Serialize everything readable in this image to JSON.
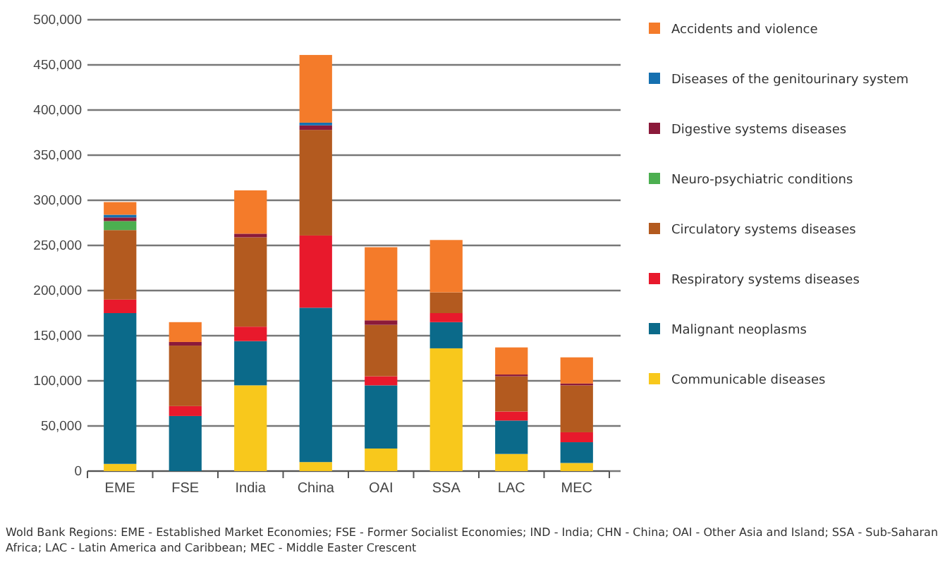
{
  "chart_data": {
    "type": "bar",
    "stacked": true,
    "categories": [
      "EME",
      "FSE",
      "India",
      "China",
      "OAI",
      "SSA",
      "LAC",
      "MEC"
    ],
    "series": [
      {
        "name": "Communicable diseases",
        "color": "#f8c81c",
        "values": [
          8000,
          0,
          95000,
          10000,
          25000,
          136000,
          19000,
          9000
        ]
      },
      {
        "name": "Malignant neoplasms",
        "color": "#0b6a8a",
        "values": [
          167000,
          61000,
          49000,
          171000,
          70000,
          29000,
          37000,
          23000
        ]
      },
      {
        "name": "Respiratory systems diseases",
        "color": "#e8192c",
        "values": [
          15000,
          11000,
          16000,
          80000,
          10000,
          10000,
          10000,
          11000
        ]
      },
      {
        "name": "Circulatory systems diseases",
        "color": "#b35a1f",
        "values": [
          77000,
          67000,
          99000,
          117000,
          57000,
          23000,
          39000,
          52000
        ]
      },
      {
        "name": "Neuro-psychiatric conditions",
        "color": "#4caf50",
        "values": [
          10000,
          0,
          0,
          0,
          0,
          0,
          0,
          0
        ]
      },
      {
        "name": "Digestive systems diseases",
        "color": "#8b1a3a",
        "values": [
          4000,
          4000,
          4000,
          5000,
          5000,
          0,
          2000,
          2000
        ]
      },
      {
        "name": "Diseases of the genitourinary system",
        "color": "#1570b0",
        "values": [
          3000,
          0,
          0,
          3000,
          0,
          0,
          0,
          0
        ]
      },
      {
        "name": "Accidents and violence",
        "color": "#f47b2a",
        "values": [
          14000,
          22000,
          48000,
          75000,
          81000,
          58000,
          30000,
          29000
        ]
      }
    ],
    "ylim": [
      0,
      500000
    ],
    "yticks": [
      0,
      {
        "value": 50000,
        "label": "50,000"
      },
      {
        "value": 100000,
        "label": "100,000"
      },
      {
        "value": 150000,
        "label": "150,000"
      },
      {
        "value": 200000,
        "label": "200,000"
      },
      {
        "value": 250000,
        "label": "250,000"
      },
      {
        "value": 300000,
        "label": "300,000"
      },
      {
        "value": 350000,
        "label": "350,000"
      },
      {
        "value": 400000,
        "label": "400,000"
      },
      {
        "value": 450000,
        "label": "450,000"
      },
      {
        "value": 500000,
        "label": "500,000"
      }
    ],
    "grid": "y",
    "legend": "right",
    "annotations": [
      "Wold Bank Regions: EME - Established Market Economies; FSE - Former Socialist Economies; IND - India; CHN - China; OAI - Other Asia and Island; SSA - Sub-Saharan Africa; LAC - Latin America and Caribbean; MEC - Middle Easter Crescent"
    ]
  }
}
